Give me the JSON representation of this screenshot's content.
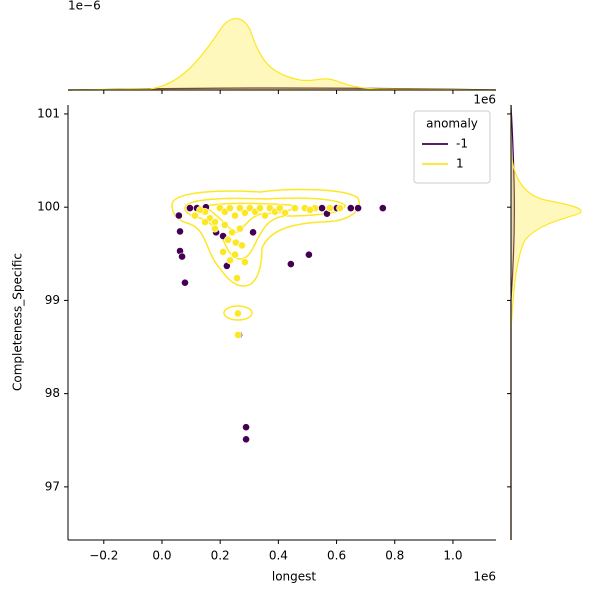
{
  "chart_data": {
    "type": "scatter",
    "xlabel": "longest",
    "ylabel": "Completeness_Specific",
    "x_offset_label": "1e6",
    "y_offset_label": "1e6",
    "top_marginal_offset_label": "1e−6",
    "xlim": [
      -0.323,
      1.148
    ],
    "ylim": [
      96.43,
      101.096
    ],
    "xticks": [
      {
        "value": -0.2,
        "label": "−0.2"
      },
      {
        "value": 0,
        "label": "0.0"
      },
      0.2,
      0.4,
      0.6,
      0.8,
      {
        "value": 1,
        "label": "1.0"
      }
    ],
    "yticks": [
      97,
      98,
      99,
      100,
      101
    ],
    "legend_title": "anomaly",
    "legend_position": "upper right",
    "series": [
      {
        "name": "-1",
        "color": "#440154",
        "x": [
          0.058,
          0.096,
          0.12,
          0.151,
          0.062,
          0.062,
          0.069,
          0.079,
          0.186,
          0.21,
          0.223,
          0.313,
          0.265,
          0.289,
          0.289,
          0.443,
          0.505,
          0.55,
          0.567,
          0.601,
          0.649,
          0.674,
          0.759
        ],
        "y": [
          99.91,
          99.99,
          99.99,
          100.0,
          99.74,
          99.53,
          99.47,
          99.19,
          99.73,
          99.69,
          99.37,
          99.73,
          98.63,
          97.64,
          97.51,
          99.39,
          99.49,
          99.99,
          99.93,
          99.99,
          99.99,
          99.99,
          99.99
        ]
      },
      {
        "name": "1",
        "color": "#fde725",
        "x": [
          0.148,
          0.165,
          0.182,
          0.199,
          0.216,
          0.234,
          0.251,
          0.268,
          0.285,
          0.302,
          0.32,
          0.337,
          0.354,
          0.371,
          0.388,
          0.405,
          0.423,
          0.457,
          0.491,
          0.526,
          0.577,
          0.612,
          0.148,
          0.182,
          0.216,
          0.241,
          0.268,
          0.254,
          0.275,
          0.227,
          0.251,
          0.285,
          0.21,
          0.234,
          0.258,
          0.261,
          0.261,
          0.131,
          0.113,
          0.509
        ],
        "y": [
          99.95,
          99.88,
          99.84,
          99.99,
          99.95,
          99.99,
          99.91,
          99.99,
          99.94,
          99.99,
          99.95,
          99.99,
          99.91,
          99.99,
          99.95,
          99.99,
          99.94,
          99.99,
          99.99,
          99.99,
          99.99,
          99.99,
          99.84,
          99.77,
          99.81,
          99.73,
          99.77,
          99.62,
          99.59,
          99.65,
          99.49,
          99.41,
          99.52,
          99.43,
          99.24,
          98.86,
          98.63,
          99.97,
          99.91,
          99.97
        ]
      }
    ]
  }
}
